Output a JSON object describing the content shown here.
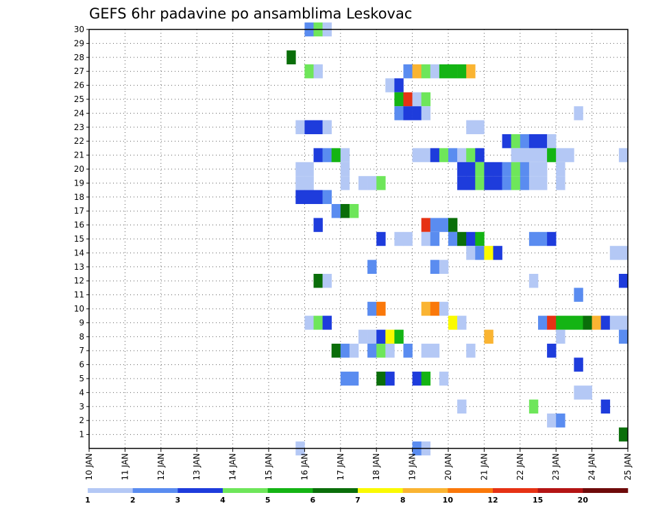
{
  "chart_data": {
    "type": "heatmap",
    "title": "GEFS 6hr padavine po ansamblima Leskovac",
    "xlabel": "",
    "ylabel": "",
    "x_ticks": [
      "10 JAN",
      "11 JAN",
      "12 JAN",
      "13 JAN",
      "14 JAN",
      "15 JAN",
      "16 JAN",
      "17 JAN",
      "18 JAN",
      "19 JAN",
      "20 JAN",
      "21 JAN",
      "22 JAN",
      "23 JAN",
      "24 JAN",
      "25 JAN"
    ],
    "y_ticks": [
      "1",
      "2",
      "3",
      "4",
      "5",
      "6",
      "7",
      "8",
      "9",
      "10",
      "11",
      "12",
      "13",
      "14",
      "15",
      "16",
      "17",
      "18",
      "19",
      "20",
      "21",
      "22",
      "23",
      "24",
      "25",
      "26",
      "27",
      "28",
      "29",
      "30"
    ],
    "x_range_days": [
      10,
      25
    ],
    "y_range": [
      0,
      30
    ],
    "grid": true,
    "colorbar": {
      "position": "bottom",
      "labels": [
        "1",
        "2",
        "3",
        "4",
        "5",
        "6",
        "7",
        "8",
        "10",
        "12",
        "15",
        "20"
      ],
      "colors": [
        "#b4c8f5",
        "#5a8cf0",
        "#1e3cdc",
        "#6ee65a",
        "#14b414",
        "#0a6e0a",
        "#fafa00",
        "#fab432",
        "#fa780a",
        "#e63214",
        "#b41414",
        "#6e0a0a"
      ]
    },
    "cell_width_days": 0.25,
    "cells": [
      {
        "d": 16.0,
        "m": 30,
        "c": 1
      },
      {
        "d": 16.25,
        "m": 30,
        "c": 3
      },
      {
        "d": 16.5,
        "m": 30,
        "c": 0
      },
      {
        "d": 15.5,
        "m": 28,
        "c": 5
      },
      {
        "d": 16.0,
        "m": 27,
        "c": 3
      },
      {
        "d": 16.25,
        "m": 27,
        "c": 0
      },
      {
        "d": 18.75,
        "m": 27,
        "c": 1
      },
      {
        "d": 19.0,
        "m": 27,
        "c": 7
      },
      {
        "d": 19.25,
        "m": 27,
        "c": 3
      },
      {
        "d": 19.5,
        "m": 27,
        "c": 0
      },
      {
        "d": 19.75,
        "m": 27,
        "c": 4
      },
      {
        "d": 20.0,
        "m": 27,
        "c": 4
      },
      {
        "d": 20.25,
        "m": 27,
        "c": 4
      },
      {
        "d": 20.5,
        "m": 27,
        "c": 7
      },
      {
        "d": 18.25,
        "m": 26,
        "c": 0
      },
      {
        "d": 18.5,
        "m": 26,
        "c": 2
      },
      {
        "d": 18.5,
        "m": 25,
        "c": 4
      },
      {
        "d": 18.75,
        "m": 25,
        "c": 9
      },
      {
        "d": 19.0,
        "m": 25,
        "c": 0
      },
      {
        "d": 19.25,
        "m": 25,
        "c": 3
      },
      {
        "d": 18.5,
        "m": 24,
        "c": 1
      },
      {
        "d": 18.75,
        "m": 24,
        "c": 2
      },
      {
        "d": 19.0,
        "m": 24,
        "c": 2
      },
      {
        "d": 19.25,
        "m": 24,
        "c": 0
      },
      {
        "d": 23.5,
        "m": 24,
        "c": 0
      },
      {
        "d": 15.75,
        "m": 23,
        "c": 0
      },
      {
        "d": 16.0,
        "m": 23,
        "c": 2
      },
      {
        "d": 16.25,
        "m": 23,
        "c": 2
      },
      {
        "d": 16.5,
        "m": 23,
        "c": 0
      },
      {
        "d": 20.5,
        "m": 23,
        "c": 0
      },
      {
        "d": 20.75,
        "m": 23,
        "c": 0
      },
      {
        "d": 21.5,
        "m": 22,
        "c": 2
      },
      {
        "d": 21.75,
        "m": 22,
        "c": 3
      },
      {
        "d": 22.0,
        "m": 22,
        "c": 1
      },
      {
        "d": 22.25,
        "m": 22,
        "c": 2
      },
      {
        "d": 22.5,
        "m": 22,
        "c": 2
      },
      {
        "d": 22.75,
        "m": 22,
        "c": 0
      },
      {
        "d": 16.25,
        "m": 21,
        "c": 2
      },
      {
        "d": 16.5,
        "m": 21,
        "c": 1
      },
      {
        "d": 16.75,
        "m": 21,
        "c": 4
      },
      {
        "d": 17.0,
        "m": 21,
        "c": 0
      },
      {
        "d": 19.0,
        "m": 21,
        "c": 0
      },
      {
        "d": 19.25,
        "m": 21,
        "c": 0
      },
      {
        "d": 19.5,
        "m": 21,
        "c": 2
      },
      {
        "d": 19.75,
        "m": 21,
        "c": 3
      },
      {
        "d": 20.0,
        "m": 21,
        "c": 1
      },
      {
        "d": 20.25,
        "m": 21,
        "c": 0
      },
      {
        "d": 20.5,
        "m": 21,
        "c": 3
      },
      {
        "d": 20.75,
        "m": 21,
        "c": 2
      },
      {
        "d": 21.75,
        "m": 21,
        "c": 0
      },
      {
        "d": 22.0,
        "m": 21,
        "c": 0
      },
      {
        "d": 22.25,
        "m": 21,
        "c": 0
      },
      {
        "d": 22.5,
        "m": 21,
        "c": 0
      },
      {
        "d": 22.75,
        "m": 21,
        "c": 4
      },
      {
        "d": 23.0,
        "m": 21,
        "c": 0
      },
      {
        "d": 23.25,
        "m": 21,
        "c": 0
      },
      {
        "d": 24.75,
        "m": 21,
        "c": 0
      },
      {
        "d": 15.75,
        "m": 20,
        "c": 0
      },
      {
        "d": 16.0,
        "m": 20,
        "c": 0
      },
      {
        "d": 17.0,
        "m": 20,
        "c": 0
      },
      {
        "d": 20.25,
        "m": 20,
        "c": 2
      },
      {
        "d": 20.5,
        "m": 20,
        "c": 2
      },
      {
        "d": 20.75,
        "m": 20,
        "c": 3
      },
      {
        "d": 21.0,
        "m": 20,
        "c": 2
      },
      {
        "d": 21.25,
        "m": 20,
        "c": 2
      },
      {
        "d": 21.5,
        "m": 20,
        "c": 1
      },
      {
        "d": 21.75,
        "m": 20,
        "c": 3
      },
      {
        "d": 22.0,
        "m": 20,
        "c": 1
      },
      {
        "d": 22.25,
        "m": 20,
        "c": 0
      },
      {
        "d": 22.5,
        "m": 20,
        "c": 0
      },
      {
        "d": 23.0,
        "m": 20,
        "c": 0
      },
      {
        "d": 15.75,
        "m": 19,
        "c": 0
      },
      {
        "d": 16.0,
        "m": 19,
        "c": 0
      },
      {
        "d": 17.0,
        "m": 19,
        "c": 0
      },
      {
        "d": 17.5,
        "m": 19,
        "c": 0
      },
      {
        "d": 17.75,
        "m": 19,
        "c": 0
      },
      {
        "d": 18.0,
        "m": 19,
        "c": 3
      },
      {
        "d": 20.25,
        "m": 19,
        "c": 2
      },
      {
        "d": 20.5,
        "m": 19,
        "c": 2
      },
      {
        "d": 20.75,
        "m": 19,
        "c": 3
      },
      {
        "d": 21.0,
        "m": 19,
        "c": 2
      },
      {
        "d": 21.25,
        "m": 19,
        "c": 2
      },
      {
        "d": 21.5,
        "m": 19,
        "c": 1
      },
      {
        "d": 21.75,
        "m": 19,
        "c": 3
      },
      {
        "d": 22.0,
        "m": 19,
        "c": 1
      },
      {
        "d": 22.25,
        "m": 19,
        "c": 0
      },
      {
        "d": 22.5,
        "m": 19,
        "c": 0
      },
      {
        "d": 23.0,
        "m": 19,
        "c": 0
      },
      {
        "d": 15.75,
        "m": 18,
        "c": 2
      },
      {
        "d": 16.0,
        "m": 18,
        "c": 2
      },
      {
        "d": 16.25,
        "m": 18,
        "c": 2
      },
      {
        "d": 16.5,
        "m": 18,
        "c": 1
      },
      {
        "d": 16.75,
        "m": 17,
        "c": 1
      },
      {
        "d": 17.0,
        "m": 17,
        "c": 5
      },
      {
        "d": 17.25,
        "m": 17,
        "c": 3
      },
      {
        "d": 16.25,
        "m": 16,
        "c": 2
      },
      {
        "d": 19.25,
        "m": 16,
        "c": 9
      },
      {
        "d": 19.5,
        "m": 16,
        "c": 1
      },
      {
        "d": 19.75,
        "m": 16,
        "c": 1
      },
      {
        "d": 20.0,
        "m": 16,
        "c": 5
      },
      {
        "d": 18.0,
        "m": 15,
        "c": 2
      },
      {
        "d": 18.5,
        "m": 15,
        "c": 0
      },
      {
        "d": 18.75,
        "m": 15,
        "c": 0
      },
      {
        "d": 19.25,
        "m": 15,
        "c": 0
      },
      {
        "d": 19.5,
        "m": 15,
        "c": 1
      },
      {
        "d": 20.0,
        "m": 15,
        "c": 1
      },
      {
        "d": 20.25,
        "m": 15,
        "c": 5
      },
      {
        "d": 20.5,
        "m": 15,
        "c": 2
      },
      {
        "d": 20.75,
        "m": 15,
        "c": 4
      },
      {
        "d": 22.25,
        "m": 15,
        "c": 1
      },
      {
        "d": 22.5,
        "m": 15,
        "c": 1
      },
      {
        "d": 22.75,
        "m": 15,
        "c": 2
      },
      {
        "d": 20.5,
        "m": 14,
        "c": 0
      },
      {
        "d": 20.75,
        "m": 14,
        "c": 1
      },
      {
        "d": 21.0,
        "m": 14,
        "c": 6
      },
      {
        "d": 21.25,
        "m": 14,
        "c": 2
      },
      {
        "d": 24.5,
        "m": 14,
        "c": 0
      },
      {
        "d": 24.75,
        "m": 14,
        "c": 0
      },
      {
        "d": 17.75,
        "m": 13,
        "c": 1
      },
      {
        "d": 19.5,
        "m": 13,
        "c": 1
      },
      {
        "d": 19.75,
        "m": 13,
        "c": 0
      },
      {
        "d": 16.25,
        "m": 12,
        "c": 5
      },
      {
        "d": 16.5,
        "m": 12,
        "c": 0
      },
      {
        "d": 22.25,
        "m": 12,
        "c": 0
      },
      {
        "d": 24.75,
        "m": 12,
        "c": 2
      },
      {
        "d": 23.5,
        "m": 11,
        "c": 1
      },
      {
        "d": 17.75,
        "m": 10,
        "c": 1
      },
      {
        "d": 18.0,
        "m": 10,
        "c": 8
      },
      {
        "d": 19.25,
        "m": 10,
        "c": 7
      },
      {
        "d": 19.5,
        "m": 10,
        "c": 8
      },
      {
        "d": 19.75,
        "m": 10,
        "c": 0
      },
      {
        "d": 16.0,
        "m": 9,
        "c": 0
      },
      {
        "d": 16.25,
        "m": 9,
        "c": 3
      },
      {
        "d": 16.5,
        "m": 9,
        "c": 2
      },
      {
        "d": 20.0,
        "m": 9,
        "c": 6
      },
      {
        "d": 20.25,
        "m": 9,
        "c": 0
      },
      {
        "d": 22.5,
        "m": 9,
        "c": 1
      },
      {
        "d": 22.75,
        "m": 9,
        "c": 9
      },
      {
        "d": 23.0,
        "m": 9,
        "c": 4
      },
      {
        "d": 23.25,
        "m": 9,
        "c": 4
      },
      {
        "d": 23.5,
        "m": 9,
        "c": 4
      },
      {
        "d": 23.75,
        "m": 9,
        "c": 5
      },
      {
        "d": 24.0,
        "m": 9,
        "c": 7
      },
      {
        "d": 24.25,
        "m": 9,
        "c": 2
      },
      {
        "d": 24.5,
        "m": 9,
        "c": 0
      },
      {
        "d": 24.75,
        "m": 9,
        "c": 0
      },
      {
        "d": 17.5,
        "m": 8,
        "c": 0
      },
      {
        "d": 17.75,
        "m": 8,
        "c": 0
      },
      {
        "d": 18.0,
        "m": 8,
        "c": 2
      },
      {
        "d": 18.25,
        "m": 8,
        "c": 6
      },
      {
        "d": 18.5,
        "m": 8,
        "c": 4
      },
      {
        "d": 21.0,
        "m": 8,
        "c": 7
      },
      {
        "d": 23.0,
        "m": 8,
        "c": 0
      },
      {
        "d": 24.75,
        "m": 8,
        "c": 1
      },
      {
        "d": 16.75,
        "m": 7,
        "c": 5
      },
      {
        "d": 17.0,
        "m": 7,
        "c": 1
      },
      {
        "d": 17.25,
        "m": 7,
        "c": 0
      },
      {
        "d": 17.75,
        "m": 7,
        "c": 1
      },
      {
        "d": 18.0,
        "m": 7,
        "c": 3
      },
      {
        "d": 18.25,
        "m": 7,
        "c": 0
      },
      {
        "d": 18.75,
        "m": 7,
        "c": 1
      },
      {
        "d": 19.25,
        "m": 7,
        "c": 0
      },
      {
        "d": 19.5,
        "m": 7,
        "c": 0
      },
      {
        "d": 20.5,
        "m": 7,
        "c": 0
      },
      {
        "d": 22.75,
        "m": 7,
        "c": 2
      },
      {
        "d": 23.5,
        "m": 6,
        "c": 2
      },
      {
        "d": 17.0,
        "m": 5,
        "c": 1
      },
      {
        "d": 17.25,
        "m": 5,
        "c": 1
      },
      {
        "d": 18.0,
        "m": 5,
        "c": 5
      },
      {
        "d": 18.25,
        "m": 5,
        "c": 2
      },
      {
        "d": 19.0,
        "m": 5,
        "c": 2
      },
      {
        "d": 19.25,
        "m": 5,
        "c": 4
      },
      {
        "d": 19.75,
        "m": 5,
        "c": 0
      },
      {
        "d": 23.5,
        "m": 4,
        "c": 0
      },
      {
        "d": 23.75,
        "m": 4,
        "c": 0
      },
      {
        "d": 20.25,
        "m": 3,
        "c": 0
      },
      {
        "d": 22.25,
        "m": 3,
        "c": 3
      },
      {
        "d": 24.25,
        "m": 3,
        "c": 2
      },
      {
        "d": 22.75,
        "m": 2,
        "c": 0
      },
      {
        "d": 23.0,
        "m": 2,
        "c": 1
      },
      {
        "d": 24.75,
        "m": 1,
        "c": 5
      },
      {
        "d": 15.75,
        "m": 0,
        "c": 0
      },
      {
        "d": 19.0,
        "m": 0,
        "c": 1
      },
      {
        "d": 19.25,
        "m": 0,
        "c": 0
      }
    ]
  }
}
